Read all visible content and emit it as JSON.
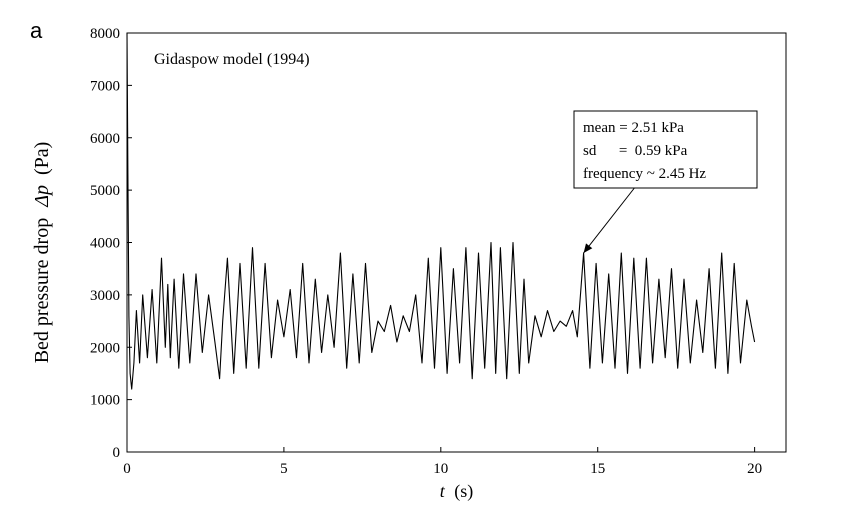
{
  "chart_data": {
    "type": "line",
    "panel_label": "a",
    "title": "Gidaspow model (1994)",
    "xlabel_var": "t",
    "xlabel_unit": "(s)",
    "ylabel_main": "Bed pressure drop",
    "ylabel_var": "Δp",
    "ylabel_unit": "(Pa)",
    "xlim": [
      0,
      21
    ],
    "ylim": [
      0,
      8000
    ],
    "xticks": [
      0,
      5,
      10,
      15,
      20
    ],
    "yticks": [
      0,
      1000,
      2000,
      3000,
      4000,
      5000,
      6000,
      7000,
      8000
    ],
    "grid": false,
    "line_color": "#000000",
    "annotation": {
      "lines": [
        "mean = 2.51 kPa",
        "sd      =  0.59 kPa",
        "frequency ~ 2.45 Hz"
      ],
      "arrow_target": [
        14.55,
        3800
      ]
    },
    "series": [
      {
        "x": [
          0,
          0.03,
          0.06,
          0.1,
          0.15,
          0.22,
          0.3,
          0.4,
          0.5,
          0.65,
          0.8,
          0.95,
          1.1,
          1.22,
          1.3,
          1.38,
          1.5,
          1.65,
          1.8,
          2.0,
          2.2,
          2.4,
          2.6,
          2.8,
          2.95,
          3.05,
          3.2,
          3.4,
          3.6,
          3.8,
          4.0,
          4.2,
          4.4,
          4.6,
          4.8,
          5.0,
          5.2,
          5.4,
          5.6,
          5.8,
          6.0,
          6.2,
          6.4,
          6.6,
          6.8,
          7.0,
          7.2,
          7.4,
          7.6,
          7.8,
          8.0,
          8.2,
          8.4,
          8.6,
          8.8,
          9.0,
          9.2,
          9.4,
          9.6,
          9.8,
          10.0,
          10.2,
          10.4,
          10.6,
          10.8,
          11.0,
          11.2,
          11.4,
          11.6,
          11.75,
          11.9,
          12.1,
          12.3,
          12.5,
          12.65,
          12.8,
          13.0,
          13.2,
          13.4,
          13.6,
          13.8,
          14.0,
          14.2,
          14.35,
          14.55,
          14.75,
          14.95,
          15.15,
          15.35,
          15.55,
          15.75,
          15.95,
          16.15,
          16.35,
          16.55,
          16.75,
          16.95,
          17.15,
          17.35,
          17.55,
          17.75,
          17.95,
          18.15,
          18.35,
          18.55,
          18.75,
          18.95,
          19.15,
          19.35,
          19.55,
          19.75,
          19.9,
          20.0
        ],
        "y": [
          8000,
          5300,
          2600,
          1500,
          1200,
          1700,
          2700,
          1700,
          3000,
          1800,
          3100,
          1700,
          3700,
          2000,
          3200,
          1800,
          3300,
          1600,
          3400,
          1700,
          3400,
          1900,
          3000,
          2100,
          1400,
          2500,
          3700,
          1500,
          3600,
          1600,
          3900,
          1600,
          3600,
          1800,
          2900,
          2200,
          3100,
          1800,
          3600,
          1700,
          3300,
          1900,
          3000,
          2000,
          3800,
          1600,
          3400,
          1700,
          3600,
          1900,
          2500,
          2300,
          2800,
          2100,
          2600,
          2300,
          3000,
          1700,
          3700,
          1600,
          3900,
          1500,
          3500,
          1700,
          3900,
          1400,
          3800,
          1600,
          4000,
          1500,
          3900,
          1400,
          4000,
          1500,
          3300,
          1700,
          2600,
          2200,
          2700,
          2300,
          2500,
          2400,
          2700,
          2200,
          3800,
          1600,
          3600,
          1700,
          3400,
          1600,
          3800,
          1500,
          3700,
          1600,
          3700,
          1700,
          3300,
          1800,
          3500,
          1600,
          3300,
          1700,
          2900,
          1900,
          3500,
          1600,
          3800,
          1500,
          3600,
          1700,
          2900,
          2400,
          2100
        ]
      }
    ]
  }
}
